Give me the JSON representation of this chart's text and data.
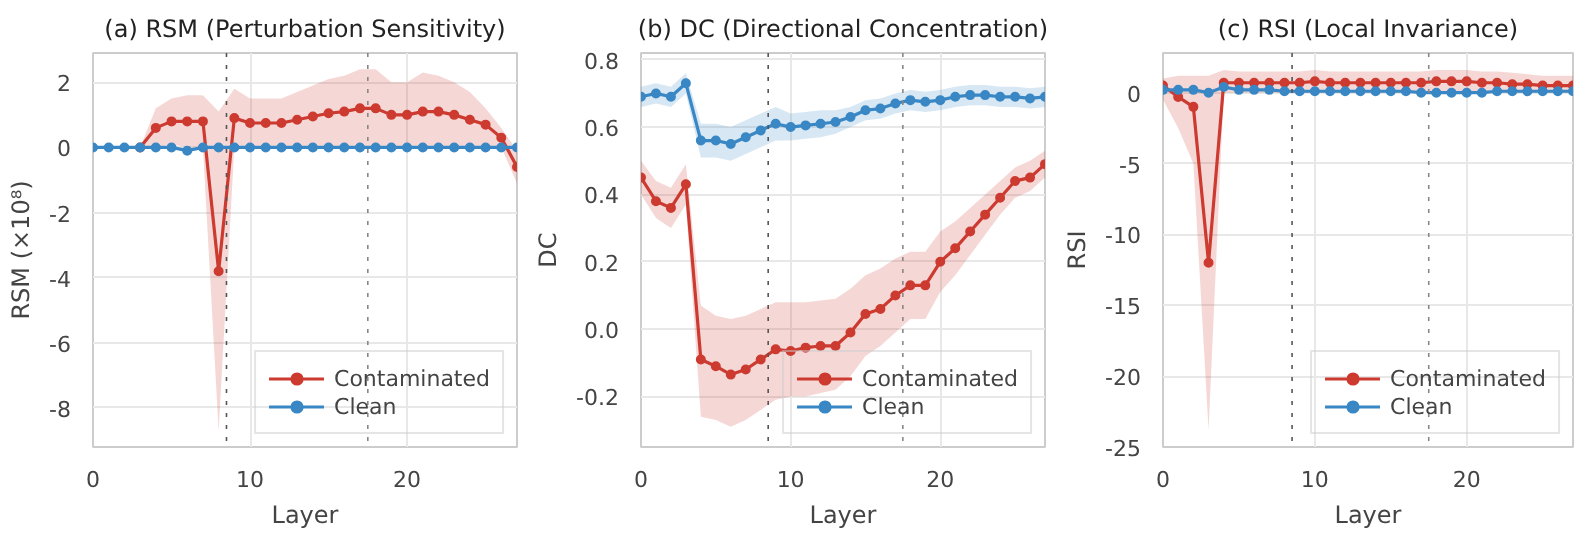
{
  "chart_data": [
    {
      "type": "line",
      "title": "(a) RSM (Perturbation Sensitivity)",
      "xlabel": "Layer",
      "ylabel": "RSM (×10⁸)",
      "x": [
        0,
        1,
        2,
        3,
        4,
        5,
        6,
        7,
        8,
        9,
        10,
        11,
        12,
        13,
        14,
        15,
        16,
        17,
        18,
        19,
        20,
        21,
        22,
        23,
        24,
        25,
        26,
        27
      ],
      "series": [
        {
          "name": "Contaminated",
          "color": "#cc3a30",
          "values": [
            null,
            null,
            null,
            0,
            0.6,
            0.8,
            0.8,
            0.8,
            -3.8,
            0.9,
            0.75,
            0.75,
            0.75,
            0.85,
            0.95,
            1.05,
            1.1,
            1.2,
            1.2,
            1.0,
            1.0,
            1.1,
            1.1,
            1.0,
            0.85,
            0.7,
            0.3,
            -0.6
          ],
          "lower": [
            null,
            null,
            null,
            0,
            0,
            0.1,
            0,
            0,
            -8.7,
            0,
            0,
            0,
            0,
            0,
            0,
            0,
            0,
            0,
            0,
            0,
            0,
            0,
            0,
            0,
            0,
            0,
            0,
            -1.1
          ],
          "upper": [
            null,
            null,
            null,
            0,
            1.2,
            1.5,
            1.6,
            1.6,
            1.1,
            1.8,
            1.5,
            1.5,
            1.5,
            1.7,
            1.9,
            2.1,
            2.2,
            2.4,
            2.4,
            2.0,
            2.0,
            2.3,
            2.2,
            2.0,
            1.7,
            1.2,
            0.6,
            -0.1
          ]
        },
        {
          "name": "Clean",
          "color": "#3987c4",
          "values": [
            0,
            0,
            0,
            0,
            0,
            0,
            -0.1,
            0,
            0,
            0,
            0,
            0,
            0,
            0,
            0,
            0,
            0,
            0,
            0,
            0,
            0,
            0,
            0,
            0,
            0,
            0,
            0,
            0
          ]
        }
      ],
      "xlim": [
        0,
        27
      ],
      "ylim": [
        -9.2,
        2.9
      ],
      "xticks": [
        0,
        10,
        20
      ],
      "yticks": [
        -8,
        -6,
        -4,
        -2,
        0,
        2
      ],
      "ref_lines": [
        {
          "axis": "x",
          "value": 8.5,
          "color": "#555555",
          "line_style": "dotted"
        },
        {
          "axis": "x",
          "value": 17.5,
          "color": "#888888",
          "line_style": "dotted"
        }
      ],
      "grid": true,
      "legend": "bottom right",
      "marker": "circle",
      "line_style": "solid"
    },
    {
      "type": "line",
      "title": "(b) DC (Directional Concentration)",
      "xlabel": "Layer",
      "ylabel": "DC",
      "x": [
        0,
        1,
        2,
        3,
        4,
        5,
        6,
        7,
        8,
        9,
        10,
        11,
        12,
        13,
        14,
        15,
        16,
        17,
        18,
        19,
        20,
        21,
        22,
        23,
        24,
        25,
        26,
        27
      ],
      "series": [
        {
          "name": "Contaminated",
          "color": "#cc3a30",
          "values": [
            0.45,
            0.38,
            0.36,
            0.43,
            -0.09,
            -0.11,
            -0.135,
            -0.12,
            -0.09,
            -0.06,
            -0.065,
            -0.055,
            -0.05,
            -0.05,
            -0.01,
            0.045,
            0.06,
            0.1,
            0.13,
            0.13,
            0.2,
            0.24,
            0.29,
            0.34,
            0.39,
            0.44,
            0.45,
            0.49
          ],
          "lower": [
            0.4,
            0.33,
            0.3,
            0.37,
            -0.26,
            -0.27,
            -0.29,
            -0.27,
            -0.24,
            -0.21,
            -0.2,
            -0.2,
            -0.19,
            -0.18,
            -0.14,
            -0.08,
            -0.05,
            -0.01,
            0.03,
            0.03,
            0.11,
            0.16,
            0.22,
            0.28,
            0.34,
            0.39,
            0.41,
            0.45
          ],
          "upper": [
            0.5,
            0.44,
            0.42,
            0.49,
            0.07,
            0.04,
            0.03,
            0.04,
            0.06,
            0.08,
            0.08,
            0.08,
            0.085,
            0.09,
            0.12,
            0.16,
            0.18,
            0.21,
            0.23,
            0.23,
            0.29,
            0.32,
            0.36,
            0.4,
            0.44,
            0.48,
            0.5,
            0.53
          ]
        },
        {
          "name": "Clean",
          "color": "#3987c4",
          "values": [
            0.69,
            0.7,
            0.69,
            0.73,
            0.56,
            0.56,
            0.55,
            0.57,
            0.59,
            0.61,
            0.6,
            0.605,
            0.61,
            0.615,
            0.63,
            0.65,
            0.655,
            0.67,
            0.68,
            0.675,
            0.68,
            0.69,
            0.695,
            0.695,
            0.69,
            0.69,
            0.685,
            0.69
          ],
          "lower": [
            0.66,
            0.67,
            0.66,
            0.7,
            0.51,
            0.51,
            0.5,
            0.52,
            0.54,
            0.56,
            0.56,
            0.565,
            0.57,
            0.58,
            0.6,
            0.62,
            0.625,
            0.64,
            0.65,
            0.645,
            0.65,
            0.66,
            0.665,
            0.665,
            0.66,
            0.66,
            0.655,
            0.66
          ],
          "upper": [
            0.72,
            0.73,
            0.72,
            0.76,
            0.61,
            0.61,
            0.6,
            0.62,
            0.64,
            0.66,
            0.64,
            0.645,
            0.65,
            0.65,
            0.66,
            0.68,
            0.685,
            0.7,
            0.71,
            0.705,
            0.71,
            0.72,
            0.725,
            0.725,
            0.72,
            0.72,
            0.715,
            0.72
          ]
        }
      ],
      "xlim": [
        0,
        27
      ],
      "ylim": [
        -0.35,
        0.82
      ],
      "xticks": [
        0,
        10,
        20
      ],
      "yticks": [
        -0.2,
        {
          "value": 0,
          "label": "0.0"
        },
        0.2,
        0.4,
        0.6,
        0.8
      ],
      "ref_lines": [
        {
          "axis": "x",
          "value": 8.5,
          "color": "#555555",
          "line_style": "dotted"
        },
        {
          "axis": "x",
          "value": 17.5,
          "color": "#888888",
          "line_style": "dotted"
        }
      ],
      "grid": true,
      "legend": "bottom right",
      "marker": "circle",
      "line_style": "solid"
    },
    {
      "type": "line",
      "title": "(c) RSI (Local Invariance)",
      "xlabel": "Layer",
      "ylabel": "RSI",
      "x": [
        0,
        1,
        2,
        3,
        4,
        5,
        6,
        7,
        8,
        9,
        10,
        11,
        12,
        13,
        14,
        15,
        16,
        17,
        18,
        19,
        20,
        21,
        22,
        23,
        24,
        25,
        26,
        27
      ],
      "series": [
        {
          "name": "Contaminated",
          "color": "#cc3a30",
          "values": [
            0.5,
            -0.3,
            -1.0,
            -12.0,
            0.7,
            0.7,
            0.7,
            0.7,
            0.7,
            0.7,
            0.8,
            0.7,
            0.7,
            0.7,
            0.7,
            0.7,
            0.7,
            0.7,
            0.8,
            0.8,
            0.8,
            0.7,
            0.7,
            0.6,
            0.6,
            0.5,
            0.5,
            0.5
          ],
          "lower": [
            -0.5,
            -2.5,
            -5.0,
            -23.8,
            0,
            0,
            0,
            0,
            0,
            0,
            0,
            0,
            0,
            0,
            0,
            0,
            0,
            0,
            0,
            0,
            0,
            0,
            0,
            0,
            0,
            0,
            0,
            0
          ],
          "upper": [
            1.0,
            1.2,
            1.2,
            1.2,
            1.6,
            1.5,
            1.5,
            1.5,
            1.5,
            1.5,
            1.6,
            1.5,
            1.5,
            1.5,
            1.5,
            1.5,
            1.5,
            1.5,
            1.6,
            1.6,
            1.6,
            1.5,
            1.5,
            1.4,
            1.3,
            1.2,
            1.2,
            1.2
          ]
        },
        {
          "name": "Clean",
          "color": "#3987c4",
          "values": [
            0.2,
            0.2,
            0.2,
            0.0,
            0.4,
            0.2,
            0.2,
            0.2,
            0.1,
            0.1,
            0.1,
            0.1,
            0.1,
            0.1,
            0.1,
            0.1,
            0.1,
            0.0,
            0.0,
            0.0,
            0.0,
            0.0,
            0.1,
            0.1,
            0.1,
            0.1,
            0.1,
            0.1
          ]
        }
      ],
      "xlim": [
        0,
        27
      ],
      "ylim": [
        -25,
        2.8
      ],
      "xticks": [
        0,
        10,
        20
      ],
      "yticks": [
        -25,
        -20,
        -15,
        -10,
        -5,
        0
      ],
      "ref_lines": [
        {
          "axis": "x",
          "value": 8.5,
          "color": "#555555",
          "line_style": "dotted"
        },
        {
          "axis": "x",
          "value": 17.5,
          "color": "#888888",
          "line_style": "dotted"
        }
      ],
      "grid": true,
      "legend": "bottom right",
      "marker": "circle",
      "line_style": "solid"
    }
  ]
}
